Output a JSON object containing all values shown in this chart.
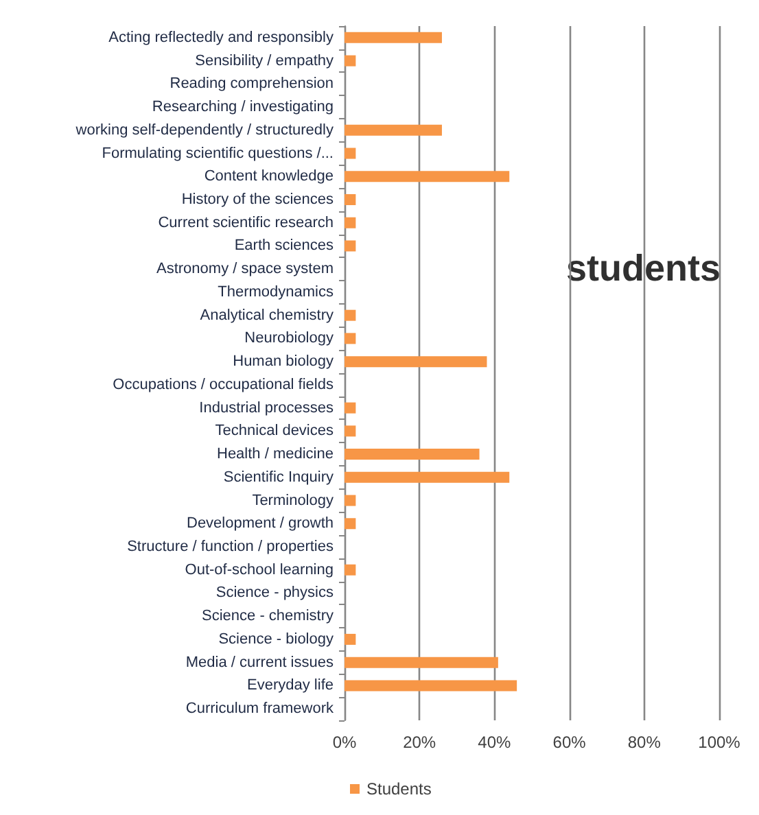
{
  "chart_data": {
    "type": "bar",
    "orientation": "horizontal",
    "categories": [
      "Acting reflectedly and responsibly",
      "Sensibility / empathy",
      "Reading comprehension",
      "Researching / investigating",
      "working self-dependently / structuredly",
      "Formulating scientific questions /...",
      "Content knowledge",
      "History of the sciences",
      "Current scientific research",
      "Earth sciences",
      "Astronomy / space system",
      "Thermodynamics",
      "Analytical chemistry",
      "Neurobiology",
      "Human biology",
      "Occupations / occupational fields",
      "Industrial processes",
      "Technical devices",
      "Health / medicine",
      "Scientific Inquiry",
      "Terminology",
      "Development / growth",
      "Structure / function / properties",
      "Out-of-school learning",
      "Science - physics",
      "Science - chemistry",
      "Science - biology",
      "Media / current issues",
      "Everyday life",
      "Curriculum framework"
    ],
    "series": [
      {
        "name": "Students",
        "color": "#f79646",
        "values": [
          26,
          3,
          0,
          0,
          26,
          3,
          44,
          3,
          3,
          3,
          0,
          0,
          3,
          3,
          38,
          0,
          3,
          3,
          36,
          44,
          3,
          3,
          0,
          3,
          0,
          0,
          3,
          41,
          46,
          0
        ]
      }
    ],
    "xlim": [
      0,
      100
    ],
    "xticks": [
      {
        "value": 0,
        "label": "0%"
      },
      {
        "value": 20,
        "label": "20%"
      },
      {
        "value": 40,
        "label": "40%"
      },
      {
        "value": 60,
        "label": "60%"
      },
      {
        "value": 80,
        "label": "80%"
      },
      {
        "value": 100,
        "label": "100%"
      }
    ],
    "grid": "x",
    "legend": "bottom",
    "annotations": [
      "students"
    ]
  }
}
